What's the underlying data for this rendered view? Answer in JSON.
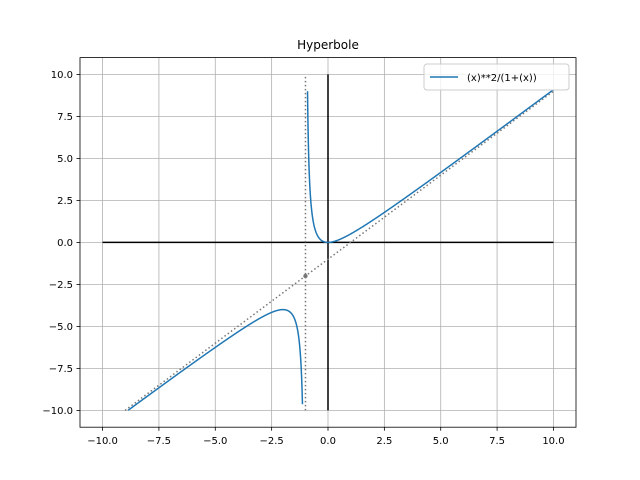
{
  "chart_data": {
    "type": "line",
    "title": "Hyperbole",
    "xlabel": "",
    "ylabel": "",
    "xlim": [
      -11,
      11
    ],
    "ylim": [
      -11,
      11
    ],
    "grid": true,
    "legend_placement": "upper right",
    "x_ticks": [
      "−10.0",
      "−7.5",
      "−5.0",
      "−2.5",
      "0.0",
      "2.5",
      "5.0",
      "7.5",
      "10.0"
    ],
    "y_ticks": [
      "−10.0",
      "−7.5",
      "−5.0",
      "−2.5",
      "0.0",
      "2.5",
      "5.0",
      "7.5",
      "10.0"
    ],
    "x_tick_values": [
      -10,
      -7.5,
      -5,
      -2.5,
      0,
      2.5,
      5,
      7.5,
      10
    ],
    "y_tick_values": [
      -10,
      -7.5,
      -5,
      -2.5,
      0,
      2.5,
      5,
      7.5,
      10
    ],
    "series": [
      {
        "name": "(x)**2/(1+(x))",
        "color": "#1f77b4",
        "style": "solid",
        "function": "x^2/(1+x)",
        "domain": [
          -9,
          10
        ],
        "range_clip": [
          -10,
          10
        ]
      }
    ],
    "asymptotes": [
      {
        "kind": "vertical",
        "x": -1,
        "y_range": [
          -10,
          10
        ],
        "color": "#777777",
        "style": "dotted"
      },
      {
        "kind": "oblique",
        "slope": 1,
        "intercept": -1,
        "x_range": [
          -9,
          10
        ],
        "color": "#777777",
        "style": "dotted"
      }
    ],
    "axes_lines": [
      {
        "kind": "horizontal",
        "y": 0,
        "x_range": [
          -10,
          10
        ],
        "color": "#000000"
      },
      {
        "kind": "vertical",
        "x": 0,
        "y_range": [
          -10,
          10
        ],
        "color": "#000000"
      }
    ],
    "marker_point": {
      "x": -1,
      "y": -2,
      "color": "#777777"
    }
  }
}
